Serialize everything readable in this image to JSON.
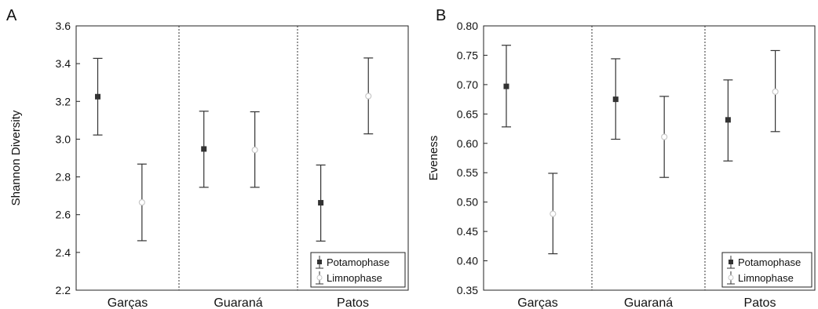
{
  "chart_data": [
    {
      "type": "scatter",
      "panel_label": "A",
      "ylabel": "Shannon Diversity",
      "ylim": [
        2.2,
        3.6
      ],
      "yticks": [
        2.2,
        2.4,
        2.6,
        2.8,
        3.0,
        3.2,
        3.4,
        3.6
      ],
      "ytick_labels": [
        "2.2",
        "2.4",
        "2.6",
        "2.8",
        "3.0",
        "3.2",
        "3.4",
        "3.6"
      ],
      "categories": [
        "Garças",
        "Guaraná",
        "Patos"
      ],
      "legend_position": "bottom-right",
      "series": [
        {
          "name": "Potamophase",
          "color": "#333333",
          "marker": "filled-square",
          "values": [
            3.225,
            2.948,
            2.663
          ],
          "lower": [
            3.022,
            2.745,
            2.46
          ],
          "upper": [
            3.428,
            3.148,
            2.863
          ]
        },
        {
          "name": "Limnophase",
          "color": "#c8c8c8",
          "marker": "open-circle",
          "values": [
            2.665,
            2.943,
            3.228
          ],
          "lower": [
            2.462,
            2.745,
            3.028
          ],
          "upper": [
            2.868,
            3.145,
            3.43
          ]
        }
      ]
    },
    {
      "type": "scatter",
      "panel_label": "B",
      "ylabel": "Eveness",
      "ylim": [
        0.35,
        0.8
      ],
      "yticks": [
        0.35,
        0.4,
        0.45,
        0.5,
        0.55,
        0.6,
        0.65,
        0.7,
        0.75,
        0.8
      ],
      "ytick_labels": [
        "0.35",
        "0.40",
        "0.45",
        "0.50",
        "0.55",
        "0.60",
        "0.65",
        "0.70",
        "0.75",
        "0.80"
      ],
      "categories": [
        "Garças",
        "Guaraná",
        "Patos"
      ],
      "legend_position": "bottom-right",
      "series": [
        {
          "name": "Potamophase",
          "color": "#333333",
          "marker": "filled-square",
          "values": [
            0.697,
            0.675,
            0.64
          ],
          "lower": [
            0.628,
            0.607,
            0.57
          ],
          "upper": [
            0.767,
            0.744,
            0.708
          ]
        },
        {
          "name": "Limnophase",
          "color": "#c8c8c8",
          "marker": "open-circle",
          "values": [
            0.48,
            0.611,
            0.688
          ],
          "lower": [
            0.412,
            0.542,
            0.62
          ],
          "upper": [
            0.549,
            0.68,
            0.758
          ]
        }
      ]
    }
  ]
}
